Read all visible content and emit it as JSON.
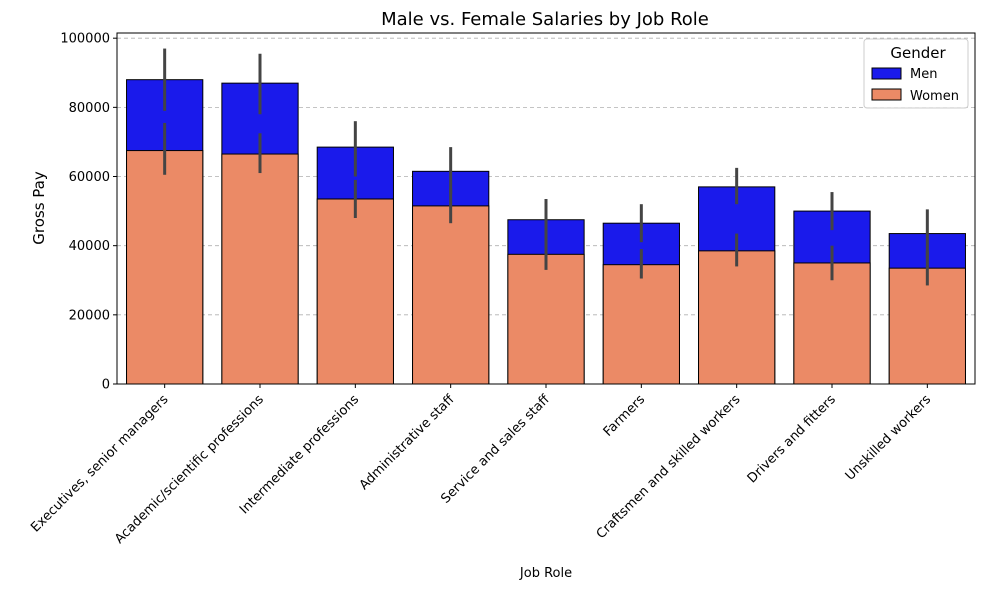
{
  "chart_data": {
    "type": "bar",
    "title": "Male vs. Female Salaries by Job Role",
    "xlabel": "Job Role",
    "ylabel": "Gross Pay",
    "ylim": [
      0,
      101500
    ],
    "yticks": [
      0,
      20000,
      40000,
      60000,
      80000,
      100000
    ],
    "grid": "y-dashed",
    "legend": {
      "title": "Gender",
      "position": "top-right"
    },
    "categories": [
      "Executives, senior managers",
      "Academic/scientific professions",
      "Intermediate professions",
      "Administrative staff",
      "Service and sales staff",
      "Farmers",
      "Craftsmen and skilled workers",
      "Drivers and fitters",
      "Unskilled workers"
    ],
    "series": [
      {
        "name": "Men",
        "color": "#1a1aeb",
        "values": [
          88000,
          87000,
          68500,
          61500,
          47500,
          46500,
          57000,
          50000,
          43500
        ],
        "ci": [
          [
            79000,
            97000
          ],
          [
            78000,
            95500
          ],
          [
            60000,
            76000
          ],
          [
            55000,
            68500
          ],
          [
            41500,
            53500
          ],
          [
            41000,
            52000
          ],
          [
            52000,
            62500
          ],
          [
            44500,
            55500
          ],
          [
            36000,
            50500
          ]
        ]
      },
      {
        "name": "Women",
        "color": "#eb8a66",
        "values": [
          67500,
          66500,
          53500,
          51500,
          37500,
          34500,
          38500,
          35000,
          33500
        ],
        "ci": [
          [
            60500,
            75500
          ],
          [
            61000,
            72500
          ],
          [
            48000,
            59000
          ],
          [
            46500,
            56500
          ],
          [
            33000,
            42500
          ],
          [
            30500,
            39000
          ],
          [
            34000,
            43500
          ],
          [
            30000,
            40000
          ],
          [
            28500,
            38500
          ]
        ]
      }
    ]
  }
}
